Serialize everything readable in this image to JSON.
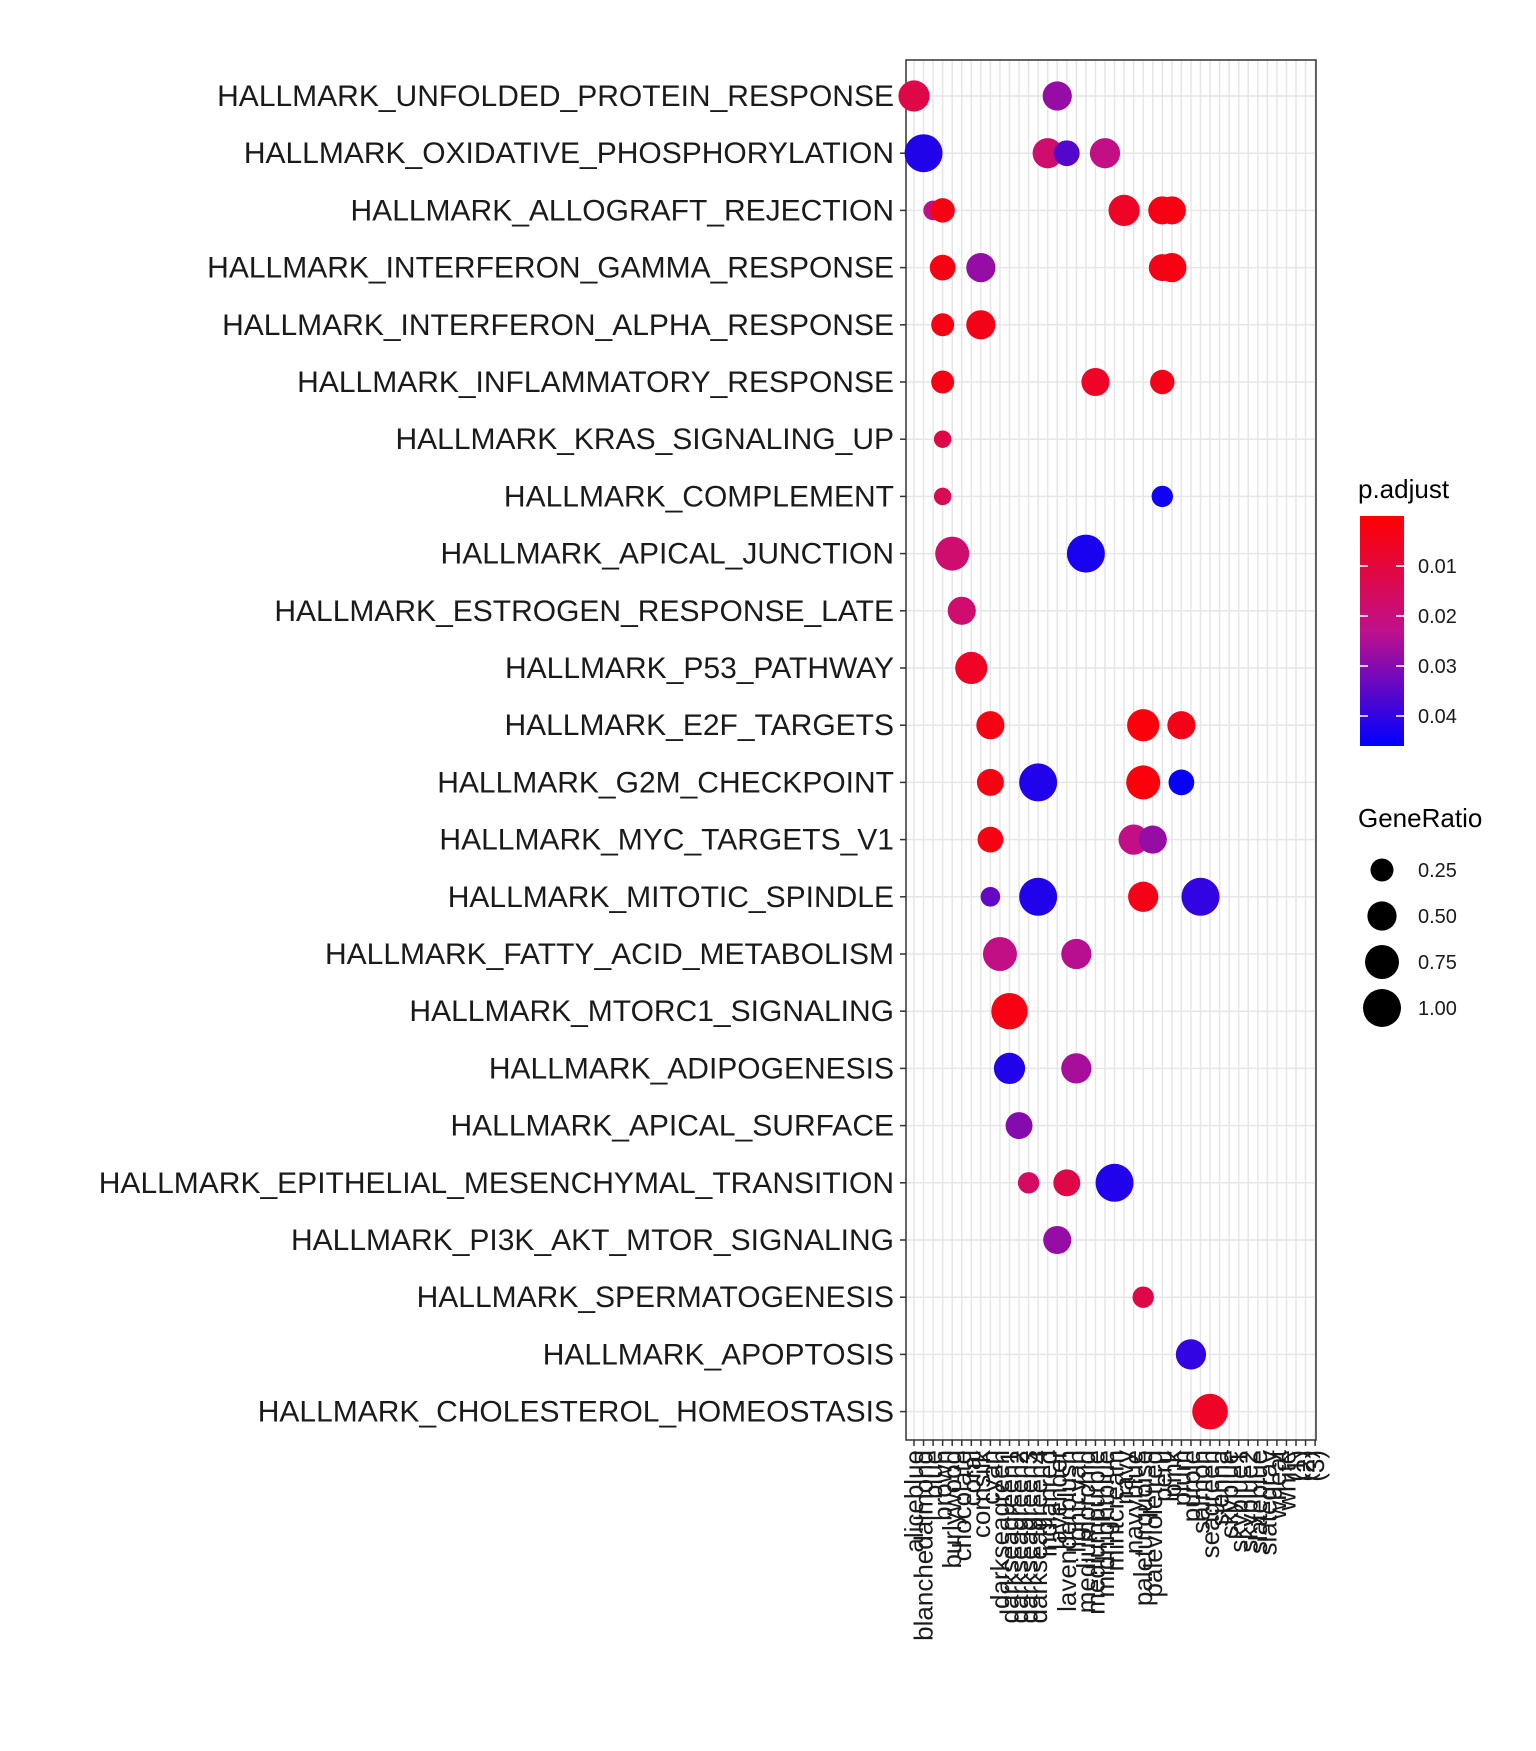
{
  "chart_data": {
    "type": "dotplot",
    "title": "",
    "xlabel": "",
    "ylabel": "",
    "categories_x": [
      "aliceblue",
      "blanchedalmond",
      "blue",
      "brown",
      "burlywood",
      "chocolate",
      "coral",
      "cornsilk",
      "cyan",
      "darkseagreen",
      "darkseagreen1",
      "darkseagreen2",
      "darkseagreen3",
      "darkseagreen4",
      "indianred",
      "lavender",
      "lavenderblush",
      "lightcyan",
      "mediumorchid",
      "mediumpurple",
      "midnightblue",
      "mintcream",
      "navy",
      "navyblue",
      "paleturquoise",
      "palevioletred",
      "peru",
      "pink",
      "plum",
      "purple",
      "salmon",
      "seagreen",
      "sienna",
      "skyblue",
      "skyblue1",
      "skyblue2",
      "slateblue",
      "slategray",
      "wheat",
      "white",
      "(1)",
      "(2)",
      "(3)"
    ],
    "categories_y": [
      "HALLMARK_UNFOLDED_PROTEIN_RESPONSE",
      "HALLMARK_OXIDATIVE_PHOSPHORYLATION",
      "HALLMARK_ALLOGRAFT_REJECTION",
      "HALLMARK_INTERFERON_GAMMA_RESPONSE",
      "HALLMARK_INTERFERON_ALPHA_RESPONSE",
      "HALLMARK_INFLAMMATORY_RESPONSE",
      "HALLMARK_KRAS_SIGNALING_UP",
      "HALLMARK_COMPLEMENT",
      "HALLMARK_APICAL_JUNCTION",
      "HALLMARK_ESTROGEN_RESPONSE_LATE",
      "HALLMARK_P53_PATHWAY",
      "HALLMARK_E2F_TARGETS",
      "HALLMARK_G2M_CHECKPOINT",
      "HALLMARK_MYC_TARGETS_V1",
      "HALLMARK_MITOTIC_SPINDLE",
      "HALLMARK_FATTY_ACID_METABOLISM",
      "HALLMARK_MTORC1_SIGNALING",
      "HALLMARK_ADIPOGENESIS",
      "HALLMARK_APICAL_SURFACE",
      "HALLMARK_EPITHELIAL_MESENCHYMAL_TRANSITION",
      "HALLMARK_PI3K_AKT_MTOR_SIGNALING",
      "HALLMARK_SPERMATOGENESIS",
      "HALLMARK_APOPTOSIS",
      "HALLMARK_CHOLESTEROL_HOMEOSTASIS"
    ],
    "points": [
      {
        "x": 0,
        "y": 0,
        "ratio": 0.6,
        "padj": 0.012
      },
      {
        "x": 15,
        "y": 0,
        "ratio": 0.5,
        "padj": 0.028
      },
      {
        "x": 1,
        "y": 1,
        "ratio": 1.0,
        "padj": 0.042
      },
      {
        "x": 14,
        "y": 1,
        "ratio": 0.55,
        "padj": 0.018
      },
      {
        "x": 16,
        "y": 1,
        "ratio": 0.35,
        "padj": 0.036
      },
      {
        "x": 20,
        "y": 1,
        "ratio": 0.55,
        "padj": 0.022
      },
      {
        "x": 2,
        "y": 2,
        "ratio": 0.15,
        "padj": 0.022
      },
      {
        "x": 3,
        "y": 2,
        "ratio": 0.3,
        "padj": 0.003
      },
      {
        "x": 22,
        "y": 2,
        "ratio": 0.6,
        "padj": 0.006
      },
      {
        "x": 26,
        "y": 2,
        "ratio": 0.45,
        "padj": 0.003
      },
      {
        "x": 27,
        "y": 2,
        "ratio": 0.45,
        "padj": 0.003
      },
      {
        "x": 3,
        "y": 3,
        "ratio": 0.35,
        "padj": 0.003
      },
      {
        "x": 7,
        "y": 3,
        "ratio": 0.5,
        "padj": 0.028
      },
      {
        "x": 26,
        "y": 3,
        "ratio": 0.4,
        "padj": 0.004
      },
      {
        "x": 27,
        "y": 3,
        "ratio": 0.5,
        "padj": 0.003
      },
      {
        "x": 3,
        "y": 4,
        "ratio": 0.25,
        "padj": 0.003
      },
      {
        "x": 7,
        "y": 4,
        "ratio": 0.5,
        "padj": 0.004
      },
      {
        "x": 3,
        "y": 5,
        "ratio": 0.25,
        "padj": 0.003
      },
      {
        "x": 19,
        "y": 5,
        "ratio": 0.45,
        "padj": 0.006
      },
      {
        "x": 26,
        "y": 5,
        "ratio": 0.3,
        "padj": 0.004
      },
      {
        "x": 3,
        "y": 6,
        "ratio": 0.1,
        "padj": 0.012
      },
      {
        "x": 3,
        "y": 7,
        "ratio": 0.1,
        "padj": 0.014
      },
      {
        "x": 26,
        "y": 7,
        "ratio": 0.2,
        "padj": 0.044
      },
      {
        "x": 4,
        "y": 8,
        "ratio": 0.75,
        "padj": 0.018
      },
      {
        "x": 18,
        "y": 8,
        "ratio": 1.0,
        "padj": 0.043
      },
      {
        "x": 5,
        "y": 9,
        "ratio": 0.45,
        "padj": 0.018
      },
      {
        "x": 6,
        "y": 10,
        "ratio": 0.65,
        "padj": 0.006
      },
      {
        "x": 8,
        "y": 11,
        "ratio": 0.45,
        "padj": 0.003
      },
      {
        "x": 24,
        "y": 11,
        "ratio": 0.65,
        "padj": 0.002
      },
      {
        "x": 28,
        "y": 11,
        "ratio": 0.45,
        "padj": 0.004
      },
      {
        "x": 8,
        "y": 12,
        "ratio": 0.4,
        "padj": 0.003
      },
      {
        "x": 13,
        "y": 12,
        "ratio": 1.0,
        "padj": 0.042
      },
      {
        "x": 24,
        "y": 12,
        "ratio": 0.75,
        "padj": 0.002
      },
      {
        "x": 28,
        "y": 12,
        "ratio": 0.35,
        "padj": 0.045
      },
      {
        "x": 8,
        "y": 13,
        "ratio": 0.35,
        "padj": 0.003
      },
      {
        "x": 23,
        "y": 13,
        "ratio": 0.55,
        "padj": 0.022
      },
      {
        "x": 25,
        "y": 13,
        "ratio": 0.45,
        "padj": 0.028
      },
      {
        "x": 8,
        "y": 14,
        "ratio": 0.15,
        "padj": 0.034
      },
      {
        "x": 13,
        "y": 14,
        "ratio": 1.0,
        "padj": 0.042
      },
      {
        "x": 24,
        "y": 14,
        "ratio": 0.55,
        "padj": 0.004
      },
      {
        "x": 30,
        "y": 14,
        "ratio": 1.0,
        "padj": 0.04
      },
      {
        "x": 9,
        "y": 15,
        "ratio": 0.75,
        "padj": 0.022
      },
      {
        "x": 17,
        "y": 15,
        "ratio": 0.55,
        "padj": 0.024
      },
      {
        "x": 10,
        "y": 16,
        "ratio": 0.9,
        "padj": 0.003
      },
      {
        "x": 10,
        "y": 17,
        "ratio": 0.6,
        "padj": 0.042
      },
      {
        "x": 17,
        "y": 17,
        "ratio": 0.55,
        "padj": 0.026
      },
      {
        "x": 11,
        "y": 18,
        "ratio": 0.4,
        "padj": 0.03
      },
      {
        "x": 12,
        "y": 19,
        "ratio": 0.2,
        "padj": 0.016
      },
      {
        "x": 16,
        "y": 19,
        "ratio": 0.4,
        "padj": 0.012
      },
      {
        "x": 21,
        "y": 19,
        "ratio": 1.0,
        "padj": 0.042
      },
      {
        "x": 15,
        "y": 20,
        "ratio": 0.45,
        "padj": 0.028
      },
      {
        "x": 24,
        "y": 21,
        "ratio": 0.2,
        "padj": 0.012
      },
      {
        "x": 29,
        "y": 22,
        "ratio": 0.55,
        "padj": 0.04
      },
      {
        "x": 31,
        "y": 23,
        "ratio": 0.85,
        "padj": 0.006
      }
    ],
    "color_legend": {
      "title": "p.adjust",
      "ticks": [
        "0.01",
        "0.02",
        "0.03",
        "0.04"
      ],
      "tick_values": [
        0.01,
        0.02,
        0.03,
        0.04
      ],
      "range": [
        0.0,
        0.046
      ],
      "low_color": "#FF0000",
      "high_color": "#0000FF"
    },
    "size_legend": {
      "title": "GeneRatio",
      "ticks": [
        "0.25",
        "0.50",
        "0.75",
        "1.00"
      ],
      "tick_values": [
        0.25,
        0.5,
        0.75,
        1.0
      ]
    }
  }
}
